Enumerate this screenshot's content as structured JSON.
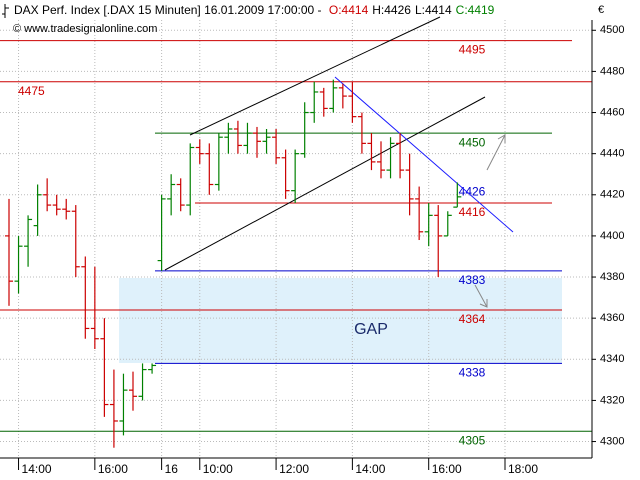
{
  "chart_data": {
    "type": "ohlc",
    "title": "DAX Perf. Index [.DAX  15 Minuten] 16.01.2009 17:00:00 -",
    "header": [
      {
        "text": "O:4414",
        "color": "#cc0000"
      },
      {
        "text": "H:4426",
        "color": "#000000"
      },
      {
        "text": "L:4414",
        "color": "#000000"
      },
      {
        "text": "C:4419",
        "color": "#008000"
      }
    ],
    "watermark": "© www.tradesignalonline.com",
    "currency": "€",
    "gap_label": "GAP",
    "up_color": "#008000",
    "down_color": "#cc0000",
    "grid": true,
    "categories": [
      null,
      "14:00",
      null,
      null,
      null,
      null,
      null,
      null,
      null,
      "16:00",
      null,
      null,
      null,
      null,
      null,
      null,
      "16",
      null,
      null,
      null,
      "10:00",
      null,
      null,
      null,
      null,
      null,
      null,
      null,
      "12:00",
      null,
      null,
      null,
      null,
      null,
      null,
      null,
      "14:00",
      null,
      null,
      null,
      null,
      null,
      null,
      null,
      "16:00",
      null,
      null,
      null,
      null,
      null,
      null,
      null,
      "18:00"
    ],
    "open": [
      4400,
      4378,
      4395,
      4405,
      4420,
      4415,
      4413,
      4412,
      4385,
      4355,
      4350,
      4318,
      4310,
      4325,
      4322,
      4335,
      4388,
      4418,
      4425,
      4415,
      4443,
      4440,
      4425,
      4448,
      4452,
      4444,
      4450,
      4446,
      4448,
      4438,
      4422,
      4440,
      4460,
      4470,
      4462,
      4472,
      4468,
      4458,
      4445,
      4436,
      4432,
      4445,
      4432,
      4418,
      4402,
      4410,
      4400,
      4414,
      null,
      null,
      null,
      null,
      null
    ],
    "high": [
      4418,
      4400,
      4410,
      4425,
      4428,
      4420,
      4418,
      4415,
      4390,
      4385,
      4360,
      4335,
      4333,
      4334,
      4338,
      4338,
      4420,
      4430,
      4428,
      4445,
      4447,
      4445,
      4450,
      4455,
      4456,
      4455,
      4453,
      4452,
      4452,
      4442,
      4442,
      4465,
      4475,
      4472,
      4476,
      4474,
      4475,
      4460,
      4450,
      4446,
      4448,
      4450,
      4440,
      4424,
      4416,
      4415,
      4412,
      4426,
      null,
      null,
      null,
      null,
      null
    ],
    "low": [
      4366,
      4372,
      4385,
      4400,
      4412,
      4410,
      4408,
      4380,
      4350,
      4345,
      4312,
      4297,
      4303,
      4315,
      4320,
      4333,
      4383,
      4410,
      4412,
      4410,
      4435,
      4420,
      4422,
      4440,
      4440,
      4440,
      4438,
      4440,
      4435,
      4418,
      4416,
      4438,
      4455,
      4458,
      4460,
      4462,
      4455,
      4440,
      4432,
      4428,
      4428,
      4428,
      4410,
      4398,
      4395,
      4380,
      4400,
      4414,
      null,
      null,
      null,
      null,
      null
    ],
    "close": [
      4378,
      4395,
      4408,
      4420,
      4415,
      4413,
      4412,
      4385,
      4355,
      4350,
      4318,
      4310,
      4325,
      4322,
      4335,
      4337,
      4418,
      4425,
      4415,
      4443,
      4440,
      4425,
      4448,
      4452,
      4444,
      4450,
      4446,
      4448,
      4438,
      4422,
      4440,
      4460,
      4470,
      4462,
      4472,
      4468,
      4458,
      4445,
      4436,
      4432,
      4445,
      4432,
      4418,
      4402,
      4410,
      4400,
      4410,
      4419,
      null,
      null,
      null,
      null,
      null
    ],
    "levels": [
      {
        "value": 4495,
        "color": "#cc0000"
      },
      {
        "value": 4475,
        "color": "#cc0000"
      },
      {
        "value": 4450,
        "color": "#006400"
      },
      {
        "value": 4426,
        "color": "#0000cc"
      },
      {
        "value": 4416,
        "color": "#cc0000"
      },
      {
        "value": 4383,
        "color": "#0000cc"
      },
      {
        "value": 4364,
        "color": "#cc0000"
      },
      {
        "value": 4338,
        "color": "#0000cc"
      },
      {
        "value": 4305,
        "color": "#006400"
      }
    ],
    "ylim": [
      4292,
      4505
    ],
    "yticks": [
      4300,
      4320,
      4340,
      4360,
      4380,
      4400,
      4420,
      4440,
      4460,
      4480,
      4500
    ]
  }
}
